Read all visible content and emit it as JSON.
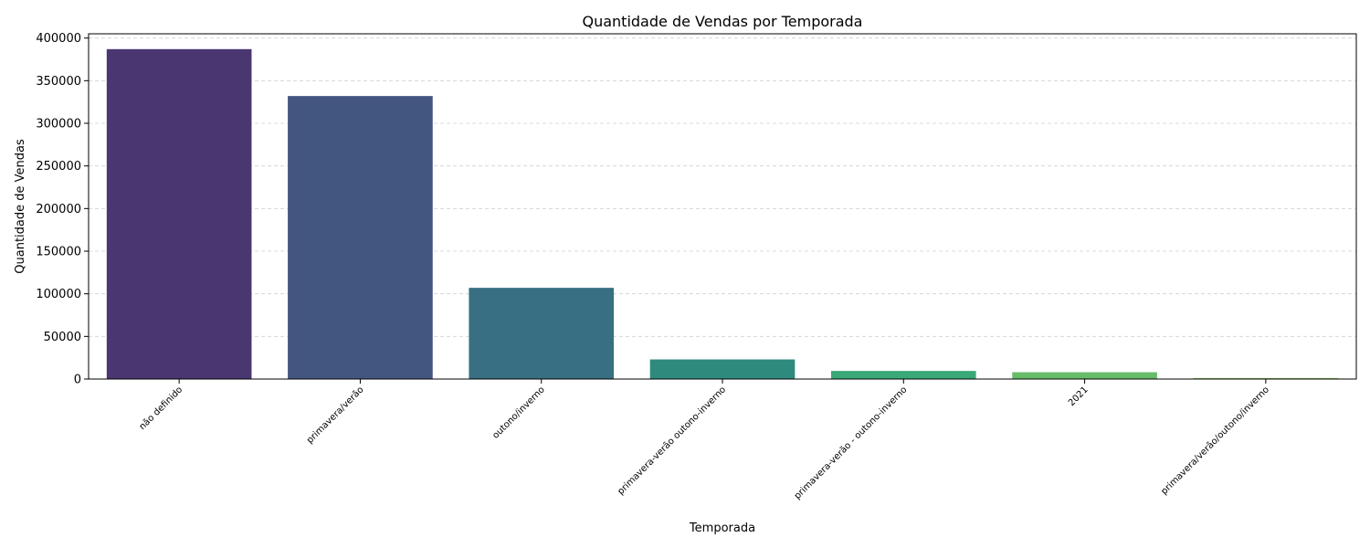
{
  "chart_data": {
    "type": "bar",
    "title": "Quantidade de Vendas por Temporada",
    "xlabel": "Temporada",
    "ylabel": "Quantidade de Vendas",
    "categories": [
      "não definido",
      "primavera/verão",
      "outono/inverno",
      "primavera-verão outono-inverno",
      "primavera-verão - outono-inverno",
      "2021",
      "primavera/verão/outono/inverno"
    ],
    "values": [
      387000,
      332000,
      107000,
      23000,
      9500,
      8000,
      1200
    ],
    "colors": [
      "#4a3671",
      "#43567f",
      "#386f82",
      "#2e8a7d",
      "#3aa877",
      "#67bc6a",
      "#8dc95a"
    ],
    "ylim": [
      0,
      405000
    ],
    "yticks": [
      0,
      50000,
      100000,
      150000,
      200000,
      250000,
      300000,
      350000,
      400000
    ],
    "grid": "y-dashed",
    "legend": "none"
  }
}
